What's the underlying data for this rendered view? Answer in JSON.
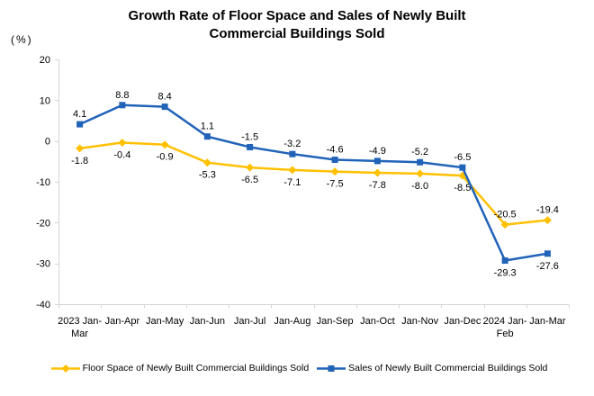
{
  "chart_data": {
    "type": "line",
    "title": "Growth Rate of Floor Space and Sales of Newly Built Commercial Buildings Sold",
    "ylabel": "(%)",
    "xlabel": "",
    "categories": [
      "2023 Jan-\nMar",
      "Jan-Apr",
      "Jan-May",
      "Jan-Jun",
      "Jan-Jul",
      "Jan-Aug",
      "Jan-Sep",
      "Jan-Oct",
      "Jan-Nov",
      "Jan-Dec",
      "2024 Jan-\nFeb",
      "Jan-Mar"
    ],
    "series": [
      {
        "id": "floor-space",
        "name": "Floor Space of Newly Built Commercial Buildings Sold",
        "color": "#FFC000",
        "marker": "diamond",
        "values": [
          -1.8,
          -0.4,
          -0.9,
          -5.3,
          -6.5,
          -7.1,
          -7.5,
          -7.8,
          -8.0,
          -8.5,
          -20.5,
          -19.4
        ],
        "label_side": [
          "below",
          "below",
          "below",
          "below",
          "below",
          "below",
          "below",
          "below",
          "below",
          "below",
          "above",
          "above"
        ]
      },
      {
        "id": "sales",
        "name": "Sales of Newly Built Commercial Buildings Sold",
        "color": "#2063B8",
        "marker": "square",
        "values": [
          4.1,
          8.8,
          8.4,
          1.1,
          -1.5,
          -3.2,
          -4.6,
          -4.9,
          -5.2,
          -6.5,
          -29.3,
          -27.6
        ],
        "label_side": [
          "above",
          "above",
          "above",
          "above",
          "above",
          "above",
          "above",
          "above",
          "above",
          "above",
          "below",
          "below"
        ]
      }
    ],
    "ylim": [
      -40,
      20
    ],
    "y_ticks": [
      20,
      10,
      0,
      -10,
      -20,
      -30,
      -40
    ],
    "grid": false,
    "legend_position": "bottom",
    "axis_color": "#D4D4D4",
    "text_color": "#000000"
  }
}
